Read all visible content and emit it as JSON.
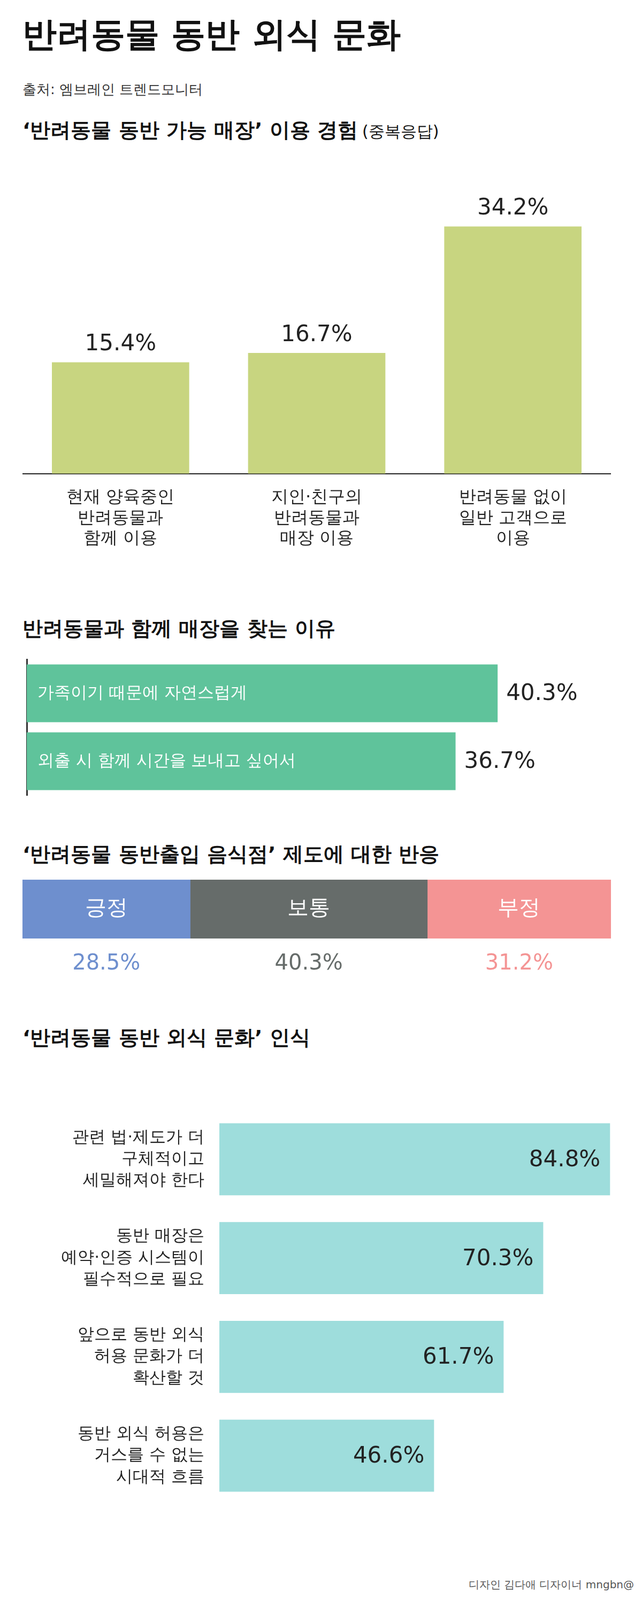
{
  "title": "반려동물 동반 외식 문화",
  "source": "출처: 엠브레인 트렌드모니터",
  "credit": "디자인 김다애 디자이너 mngbn@",
  "chart_data": [
    {
      "type": "bar",
      "title": "‘반려동물 동반 가능 매장’ 이용 경험",
      "subtitle": "(중복응답)",
      "categories": [
        "현재 양육중인 반려동물과 함께 이용",
        "지인·친구의 반려동물과 매장 이용",
        "반려동물 없이 일반 고객으로 이용"
      ],
      "values": [
        15.4,
        16.7,
        34.2
      ],
      "value_labels": [
        "15.4%",
        "16.7%",
        "34.2%"
      ],
      "color": "#c8d580",
      "ylim": [
        0,
        40
      ],
      "grid": false,
      "tick_labels": "x",
      "data_labels": true
    },
    {
      "type": "bar",
      "orientation": "horizontal",
      "title": "반려동물과 함께 매장을 찾는 이유",
      "categories": [
        "가족이기 때문에 자연스럽게",
        "외출 시 함께 시간을 보내고 싶어서"
      ],
      "values": [
        40.3,
        36.7
      ],
      "value_labels": [
        "40.3%",
        "36.7%"
      ],
      "color": "#5fc39b",
      "xlim": [
        0,
        50
      ],
      "grid": false,
      "tick_labels": "y",
      "data_labels": true
    },
    {
      "type": "bar",
      "orientation": "horizontal",
      "stacked": true,
      "title": "‘반려동물 동반출입 음식점’ 제도에 대한 반응",
      "categories": [
        null
      ],
      "series": [
        {
          "name": "긍정",
          "color": "#6e8fce",
          "values": [
            28.5
          ],
          "value_labels": [
            "28.5%"
          ]
        },
        {
          "name": "보통",
          "color": "#666c6a",
          "values": [
            40.3
          ],
          "value_labels": [
            "40.3%"
          ]
        },
        {
          "name": "부정",
          "color": "#f49494",
          "values": [
            31.2
          ],
          "value_labels": [
            "31.2%"
          ]
        }
      ],
      "xlim": [
        0,
        100
      ],
      "grid": false,
      "tick_labels": false,
      "data_labels": true
    },
    {
      "type": "bar",
      "orientation": "horizontal",
      "title": "‘반려동물 동반 외식 문화’ 인식",
      "categories": [
        "관련 법·제도가 더 구체적이고 세밀해져야 한다",
        "동반 매장은 예약·인증 시스템이 필수적으로 필요",
        "앞으로 동반 외식 허용 문화가 더 확산할 것",
        "동반 외식 허용은 거스를 수 없는 시대적 흐름"
      ],
      "values": [
        84.8,
        70.3,
        61.7,
        46.6
      ],
      "value_labels": [
        "84.8%",
        "70.3%",
        "61.7%",
        "46.6%"
      ],
      "color": "#9edddc",
      "xlim": [
        0,
        85
      ],
      "grid": false,
      "tick_labels": "y",
      "data_labels": true
    }
  ]
}
